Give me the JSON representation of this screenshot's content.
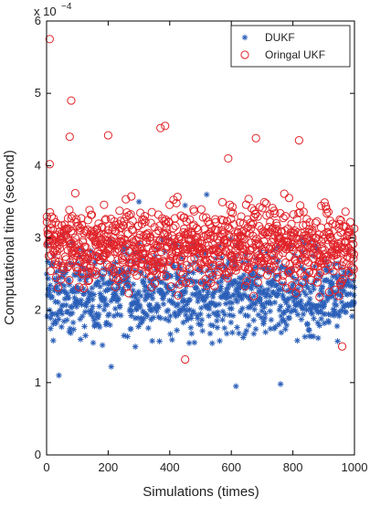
{
  "chart_data": {
    "type": "scatter",
    "xlabel": "Simulations (times)",
    "ylabel": "Computational time (second)",
    "exponent_label": "x 10",
    "exponent_power": "−4",
    "xlim": [
      0,
      1000
    ],
    "ylim": [
      0,
      6
    ],
    "x_ticks": [
      "0",
      "200",
      "400",
      "600",
      "800",
      "1000"
    ],
    "y_ticks": [
      "0",
      "1",
      "2",
      "3",
      "4",
      "5",
      "6"
    ],
    "grid": false,
    "legend_placement": "top-right",
    "series": [
      {
        "name": "DUKF",
        "marker": "asterisk",
        "color": "#2b5fb8",
        "count": 1000,
        "y_range": [
          0.95,
          3.6
        ],
        "typical_range": [
          1.6,
          2.9
        ],
        "notable_points": [
          {
            "x": 615,
            "y": 0.95
          },
          {
            "x": 760,
            "y": 0.98
          },
          {
            "x": 40,
            "y": 1.1
          },
          {
            "x": 210,
            "y": 1.22
          },
          {
            "x": 300,
            "y": 3.5
          },
          {
            "x": 520,
            "y": 3.6
          },
          {
            "x": 450,
            "y": 3.45
          }
        ]
      },
      {
        "name": "Oringal UKF",
        "marker": "circle",
        "color": "#e0242a",
        "count": 1000,
        "y_range": [
          1.3,
          5.75
        ],
        "typical_range": [
          2.3,
          3.5
        ],
        "notable_points": [
          {
            "x": 10,
            "y": 5.75
          },
          {
            "x": 80,
            "y": 4.9
          },
          {
            "x": 10,
            "y": 4.02
          },
          {
            "x": 75,
            "y": 4.4
          },
          {
            "x": 200,
            "y": 4.42
          },
          {
            "x": 385,
            "y": 4.55
          },
          {
            "x": 370,
            "y": 4.52
          },
          {
            "x": 820,
            "y": 4.35
          },
          {
            "x": 680,
            "y": 4.38
          },
          {
            "x": 590,
            "y": 4.1
          },
          {
            "x": 450,
            "y": 1.32
          },
          {
            "x": 960,
            "y": 1.5
          }
        ]
      }
    ]
  }
}
